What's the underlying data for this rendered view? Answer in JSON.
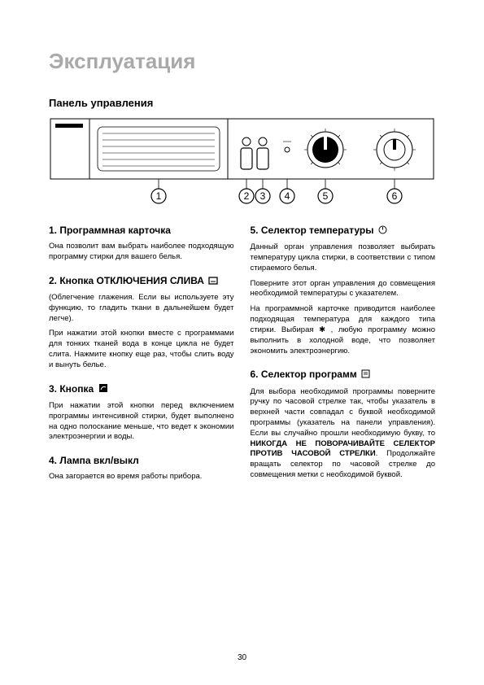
{
  "page": {
    "title": "Эксплуатация",
    "subtitle": "Панель управления",
    "page_number": "30"
  },
  "diagram": {
    "labels": [
      "1",
      "2",
      "3",
      "4",
      "5",
      "6"
    ],
    "stroke": "#000000",
    "fill": "#ffffff"
  },
  "left_column": [
    {
      "heading": "1. Программная карточка",
      "paragraphs": [
        "Она позволит вам выбрать наиболее подходящую программу стирки для вашего белья."
      ]
    },
    {
      "heading": "2. Кнопка ОТКЛЮЧЕНИЯ СЛИВА",
      "icon": "cancel-spin",
      "paragraphs": [
        "(Облегчение глажения. Если вы используете эту функцию, то гладить ткани в дальнейшем будет легче).",
        "При нажатии этой кнопки вместе с программами для тонких тканей вода в конце цикла не будет слита. Нажмите кнопку еще раз, чтобы слить воду и вынуть белье."
      ]
    },
    {
      "heading": "3. Кнопка",
      "icon": "eco",
      "paragraphs": [
        "При нажатии этой кнопки перед включением программы интенсивной стирки, будет выполнено на одно полоскание меньше, что ведет к экономии электроэнергии и воды."
      ]
    },
    {
      "heading": "4. Лампа вкл/выкл",
      "paragraphs": [
        "Она загорается во время работы прибора."
      ]
    }
  ],
  "right_column": [
    {
      "heading": "5. Селектор температуры",
      "icon": "temp",
      "paragraphs": [
        "Данный орган управления позволяет выбирать температуру цикла стирки, в соответствии с типом стираемого белья.",
        "Поверните этот орган управления до совмещения необходимой температуры с указателем.",
        "На программной карточке приводится наиболее подходящая температура для каждого типа стирки. Выбирая ✱ , любую программу можно выполнить в холодной воде, что позволяет экономить электроэнергию."
      ]
    },
    {
      "heading": "6. Селектор программ",
      "icon": "prog",
      "paragraphs_html": "Для выбора необходимой программы поверните ручку по часовой стрелке так, чтобы указатель в верхней части совпадал с буквой необходимой программы (указатель на панели управления). Если вы случайно прошли необходимую букву, то <span class=\"bold-inline\">НИКОГДА НЕ ПОВОРАЧИВАЙТЕ СЕЛЕКТОР ПРОТИВ ЧАСОВОЙ СТРЕЛКИ</span>. Продолжайте вращать селектор по часовой стрелке до совмещения метки с необходимой буквой."
    }
  ]
}
